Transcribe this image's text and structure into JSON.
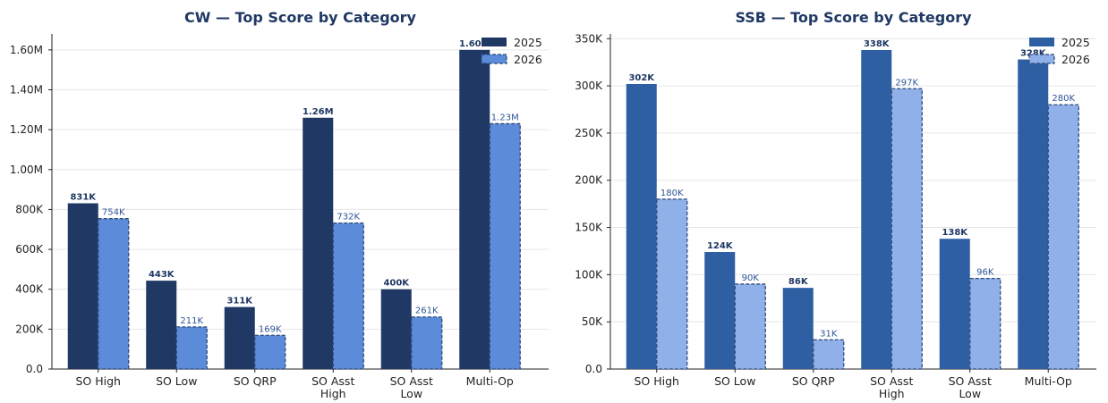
{
  "chart_data": [
    {
      "type": "bar",
      "title": "CW — Top Score by Category",
      "categories": [
        "SO High",
        "SO Low",
        "SO QRP",
        "SO Asst\nHigh",
        "SO Asst\nLow",
        "Multi-Op"
      ],
      "series": [
        {
          "name": "2025",
          "values": [
            831000,
            443000,
            311000,
            1260000,
            400000,
            1600000
          ],
          "labels": [
            "831K",
            "443K",
            "311K",
            "1.26M",
            "400K",
            "1.60M"
          ]
        },
        {
          "name": "2026",
          "values": [
            754000,
            211000,
            169000,
            732000,
            261000,
            1230000
          ],
          "labels": [
            "754K",
            "211K",
            "169K",
            "732K",
            "261K",
            "1.23M"
          ]
        }
      ],
      "ylim": [
        0,
        1680000
      ],
      "yticks": [
        0,
        200000,
        400000,
        600000,
        800000,
        1000000,
        1200000,
        1400000,
        1600000
      ],
      "ytick_labels": [
        "0.0",
        "200K",
        "400K",
        "600K",
        "800K",
        "1.00M",
        "1.20M",
        "1.40M",
        "1.60M"
      ],
      "colors": [
        "#1f3864",
        "#5b8bd9"
      ],
      "grid": true,
      "legend": "top-right"
    },
    {
      "type": "bar",
      "title": "SSB — Top Score by Category",
      "categories": [
        "SO High",
        "SO Low",
        "SO QRP",
        "SO Asst\nHigh",
        "SO Asst\nLow",
        "Multi-Op"
      ],
      "series": [
        {
          "name": "2025",
          "values": [
            302000,
            124000,
            86000,
            338000,
            138000,
            328000
          ],
          "labels": [
            "302K",
            "124K",
            "86K",
            "338K",
            "138K",
            "328K"
          ]
        },
        {
          "name": "2026",
          "values": [
            180000,
            90000,
            31000,
            297000,
            96000,
            280000
          ],
          "labels": [
            "180K",
            "90K",
            "31K",
            "297K",
            "96K",
            "280K"
          ]
        }
      ],
      "ylim": [
        0,
        355000
      ],
      "yticks": [
        0,
        50000,
        100000,
        150000,
        200000,
        250000,
        300000,
        350000
      ],
      "ytick_labels": [
        "0.0",
        "50K",
        "100K",
        "150K",
        "200K",
        "250K",
        "300K",
        "350K"
      ],
      "colors": [
        "#2e5fa3",
        "#8fb0e8"
      ],
      "grid": true,
      "legend": "top-right"
    }
  ]
}
